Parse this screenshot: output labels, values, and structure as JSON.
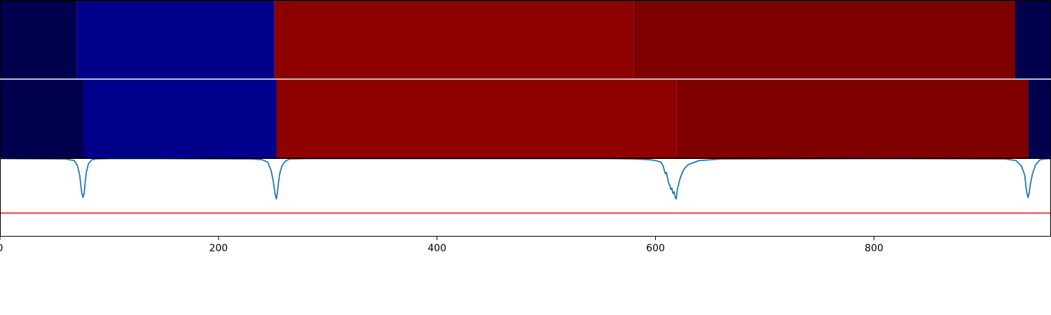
{
  "chart_data": [
    {
      "type": "heatmap",
      "segments": [
        {
          "start": 0,
          "end": 70,
          "color": "#00004c"
        },
        {
          "start": 70,
          "end": 251,
          "color": "#00008b"
        },
        {
          "start": 251,
          "end": 580,
          "color": "#8e0000"
        },
        {
          "start": 580,
          "end": 929,
          "color": "#7f0000"
        },
        {
          "start": 929,
          "end": 962,
          "color": "#00004c"
        }
      ]
    },
    {
      "type": "heatmap",
      "segments": [
        {
          "start": 0,
          "end": 76,
          "color": "#00004c"
        },
        {
          "start": 76,
          "end": 253,
          "color": "#00008b"
        },
        {
          "start": 253,
          "end": 619,
          "color": "#8e0000"
        },
        {
          "start": 619,
          "end": 941,
          "color": "#7f0000"
        },
        {
          "start": 941,
          "end": 962,
          "color": "#00004c"
        }
      ]
    },
    {
      "type": "line",
      "xlim": [
        0,
        962
      ],
      "ylim": [
        0,
        1
      ],
      "xticks": [
        "0",
        "200",
        "400",
        "600",
        "800"
      ],
      "x": [
        0,
        60,
        68,
        71,
        73,
        74,
        75,
        76,
        77,
        78,
        79,
        81,
        84,
        88,
        100,
        150,
        230,
        240,
        245,
        248,
        250,
        251,
        252,
        253,
        254,
        255,
        256,
        258,
        261,
        265,
        280,
        400,
        560,
        580,
        595,
        600,
        605,
        607,
        608,
        609,
        610,
        611,
        612,
        613,
        614,
        615,
        616,
        617,
        618,
        619,
        620,
        622,
        624,
        626,
        630,
        640,
        660,
        800,
        920,
        930,
        935,
        938,
        939,
        940,
        941,
        942,
        943,
        945,
        948,
        952,
        955,
        962
      ],
      "y": [
        0.995,
        0.99,
        0.97,
        0.9,
        0.78,
        0.65,
        0.55,
        0.5,
        0.55,
        0.7,
        0.82,
        0.93,
        0.98,
        0.99,
        0.995,
        0.995,
        0.99,
        0.98,
        0.95,
        0.85,
        0.72,
        0.62,
        0.53,
        0.48,
        0.57,
        0.7,
        0.8,
        0.9,
        0.96,
        0.99,
        0.995,
        0.995,
        0.995,
        0.99,
        0.98,
        0.97,
        0.95,
        0.9,
        0.85,
        0.8,
        0.82,
        0.75,
        0.68,
        0.66,
        0.6,
        0.62,
        0.55,
        0.57,
        0.5,
        0.48,
        0.6,
        0.72,
        0.8,
        0.86,
        0.92,
        0.97,
        0.99,
        0.995,
        0.99,
        0.97,
        0.9,
        0.78,
        0.65,
        0.55,
        0.5,
        0.55,
        0.66,
        0.8,
        0.92,
        0.98,
        0.99,
        0.995
      ],
      "color": "#1f77b4",
      "hline": {
        "y": 0.3,
        "color": "#ff0000"
      }
    }
  ]
}
